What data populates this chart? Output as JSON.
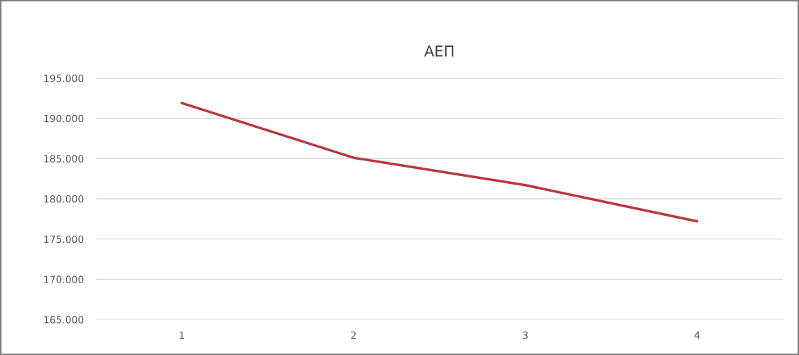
{
  "chart_data": {
    "type": "line",
    "title": "ΑΕΠ",
    "categories": [
      "1",
      "2",
      "3",
      "4"
    ],
    "series": [
      {
        "color": "#b8373f",
        "values": [
          191900,
          185100,
          181700,
          177200
        ]
      }
    ],
    "ylim": [
      165000,
      195000
    ],
    "yticks": [
      {
        "value": 165000,
        "label": "165.000"
      },
      {
        "value": 170000,
        "label": "170.000"
      },
      {
        "value": 175000,
        "label": "175.000"
      },
      {
        "value": 180000,
        "label": "180.000"
      },
      {
        "value": 185000,
        "label": "185.000"
      },
      {
        "value": 190000,
        "label": "190.000"
      },
      {
        "value": 195000,
        "label": "195.000"
      }
    ],
    "grid": "y"
  }
}
